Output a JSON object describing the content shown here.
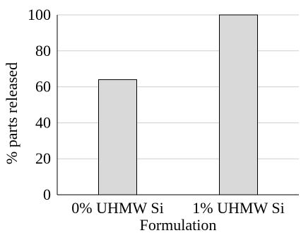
{
  "chart_data": {
    "type": "bar",
    "categories": [
      "0% UHMW Si",
      "1% UHMW Si"
    ],
    "values": [
      64,
      100
    ],
    "title": "",
    "xlabel": "Formulation",
    "ylabel": "% parts released",
    "ylim": [
      0,
      100
    ],
    "yticks": [
      "0",
      "20",
      "40",
      "60",
      "80",
      "100"
    ],
    "grid": true,
    "bar_color": "#d9d9d9",
    "bar_edge_color": "#000000",
    "grid_color": "#cfcfcf"
  }
}
